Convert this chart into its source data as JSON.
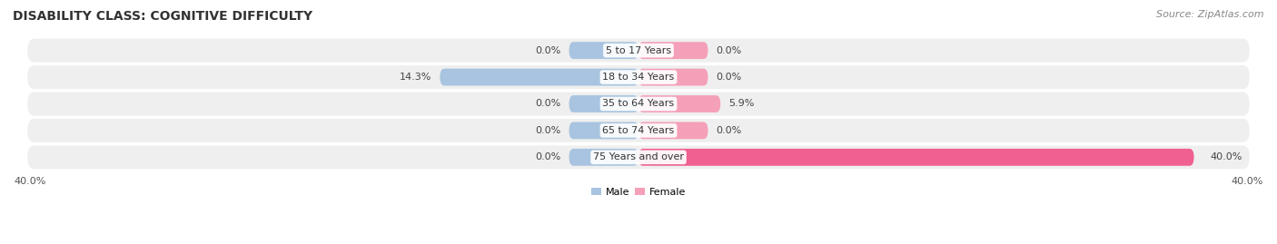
{
  "title": "DISABILITY CLASS: COGNITIVE DIFFICULTY",
  "source": "Source: ZipAtlas.com",
  "categories": [
    "5 to 17 Years",
    "18 to 34 Years",
    "35 to 64 Years",
    "65 to 74 Years",
    "75 Years and over"
  ],
  "male_values": [
    0.0,
    14.3,
    0.0,
    0.0,
    0.0
  ],
  "female_values": [
    0.0,
    0.0,
    5.9,
    0.0,
    40.0
  ],
  "max_val": 40.0,
  "male_color": "#a8c4e0",
  "female_color": "#f4a0b8",
  "female_color_strong": "#f06090",
  "male_label": "Male",
  "female_label": "Female",
  "row_bg_color": "#efefef",
  "title_fontsize": 10,
  "label_fontsize": 8,
  "axis_label_fontsize": 8,
  "source_fontsize": 8,
  "stub_size": 5.0
}
